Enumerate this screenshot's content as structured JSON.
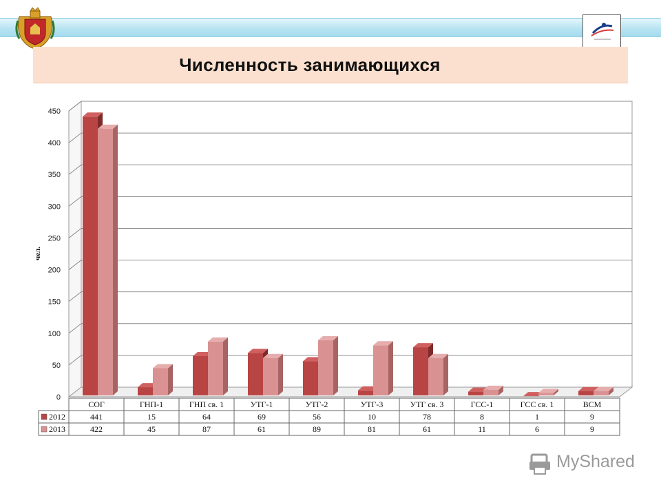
{
  "title": "Численность занимающихся",
  "watermark": "MyShared",
  "colors": {
    "series_2012": "#b94444",
    "series_2013": "#d99191",
    "title_bg": "#fbe0cf",
    "band": "#b8e4f2"
  },
  "chart_data": {
    "type": "bar",
    "title": "",
    "xlabel": "",
    "ylabel": "чел.",
    "ylim": [
      0,
      450
    ],
    "yticks": [
      0,
      50,
      100,
      150,
      200,
      250,
      300,
      350,
      400,
      450
    ],
    "grid": true,
    "style": "3d clustered column with data table",
    "categories": [
      "СОГ",
      "ГНП-1",
      "ГНП св. 1",
      "УТГ-1",
      "УТГ-2",
      "УТГ-3",
      "УТГ св. 3",
      "ГСС-1",
      "ГСС св. 1",
      "ВСМ"
    ],
    "series": [
      {
        "name": "2012",
        "values": [
          441,
          15,
          64,
          69,
          56,
          10,
          78,
          8,
          1,
          9
        ]
      },
      {
        "name": "2013",
        "values": [
          422,
          45,
          87,
          61,
          89,
          81,
          61,
          11,
          6,
          9
        ]
      }
    ]
  }
}
